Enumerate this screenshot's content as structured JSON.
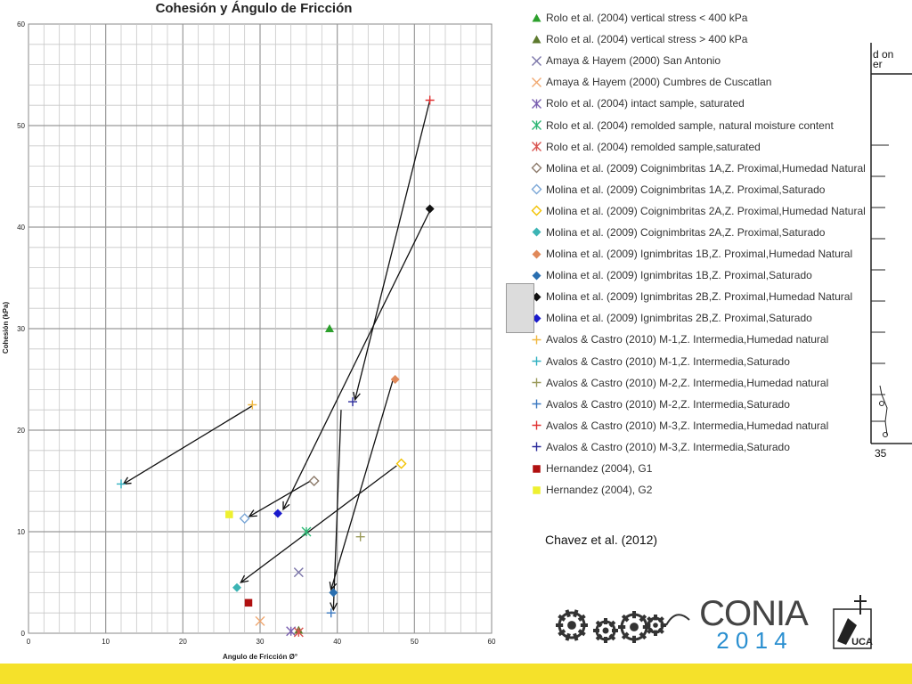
{
  "chart_data": {
    "type": "scatter",
    "title": "Cohesión y Ángulo de Fricción",
    "xlabel": "Angulo de Fricción Ø°",
    "ylabel": "Cohesión (kPa)",
    "xlim": [
      0,
      60
    ],
    "ylim": [
      0,
      60
    ],
    "xticks": [
      "0",
      "10",
      "20",
      "30",
      "40",
      "50",
      "60"
    ],
    "yticks": [
      "0",
      "10",
      "20",
      "30",
      "40",
      "50",
      "60"
    ],
    "grid": true,
    "legend_position": "right",
    "series": [
      {
        "name": "Rolo et al. (2004) vertical stress < 400 kPa",
        "marker": "triangle",
        "color": "#2ca02c",
        "points": [
          [
            39,
            30
          ]
        ]
      },
      {
        "name": "Rolo et al. (2004) vertical stress > 400 kPa",
        "marker": "triangle",
        "color": "#5d7a2e",
        "points": [
          [
            35,
            0.3
          ]
        ]
      },
      {
        "name": "Amaya & Hayem (2000) San Antonio",
        "marker": "x",
        "color": "#7a74a8",
        "points": [
          [
            35,
            6
          ]
        ]
      },
      {
        "name": "Amaya & Hayem (2000) Cumbres de Cuscatlan",
        "marker": "x",
        "color": "#f0a870",
        "points": [
          [
            30,
            1.2
          ]
        ]
      },
      {
        "name": "Rolo et al. (2004) intact sample, saturated",
        "marker": "asterisk",
        "color": "#7a5fb0",
        "points": [
          [
            34,
            0.2
          ]
        ]
      },
      {
        "name": "Rolo et al. (2004) remolded sample, natural moisture content",
        "marker": "asterisk",
        "color": "#2bb673",
        "points": [
          [
            36,
            10
          ]
        ]
      },
      {
        "name": "Rolo et al. (2004) remolded sample,saturated",
        "marker": "asterisk",
        "color": "#d9534f",
        "points": [
          [
            35,
            0.1
          ]
        ]
      },
      {
        "name": "Molina et al. (2009) Coignimbritas 1A,Z. Proximal,Humedad Natural",
        "marker": "diamond-open",
        "color": "#8c7a6b",
        "points": [
          [
            37,
            15
          ]
        ]
      },
      {
        "name": "Molina et al. (2009) Coignimbritas 1A,Z. Proximal,Saturado",
        "marker": "diamond-open",
        "color": "#7aa6d6",
        "points": [
          [
            28,
            11.3
          ]
        ]
      },
      {
        "name": "Molina et al. (2009) Coignimbritas 2A,Z. Proximal,Humedad Natural",
        "marker": "diamond-open",
        "color": "#f2c200",
        "points": [
          [
            48.3,
            16.7
          ]
        ]
      },
      {
        "name": "Molina et al. (2009) Coignimbritas 2A,Z. Proximal,Saturado",
        "marker": "diamond",
        "color": "#3cb4b4",
        "points": [
          [
            27,
            4.5
          ]
        ]
      },
      {
        "name": "Molina et al. (2009) Ignimbritas 1B,Z. Proximal,Humedad Natural",
        "marker": "diamond",
        "color": "#e0895a",
        "points": [
          [
            47.5,
            25
          ]
        ]
      },
      {
        "name": "Molina et al. (2009) Ignimbritas 1B,Z. Proximal,Saturado",
        "marker": "diamond",
        "color": "#2a6fb0",
        "points": [
          [
            39.5,
            4
          ]
        ]
      },
      {
        "name": "Molina et al. (2009) Ignimbritas 2B,Z. Proximal,Humedad Natural",
        "marker": "diamond",
        "color": "#111111",
        "points": [
          [
            52,
            41.8
          ]
        ]
      },
      {
        "name": "Molina et al. (2009) Ignimbritas 2B,Z. Proximal,Saturado",
        "marker": "diamond",
        "color": "#1a1acc",
        "points": [
          [
            32.3,
            11.8
          ]
        ]
      },
      {
        "name": "Avalos & Castro (2010) M-1,Z. Intermedia,Humedad natural",
        "marker": "plus",
        "color": "#f0b840",
        "points": [
          [
            29,
            22.5
          ]
        ]
      },
      {
        "name": "Avalos & Castro (2010) M-1,Z. Intermedia,Saturado",
        "marker": "plus",
        "color": "#30b0c0",
        "points": [
          [
            12,
            14.7
          ]
        ]
      },
      {
        "name": "Avalos & Castro (2010) M-2,Z. Intermedia,Humedad natural",
        "marker": "plus",
        "color": "#9a9a5a",
        "points": [
          [
            43,
            9.5
          ]
        ]
      },
      {
        "name": "Avalos & Castro (2010) M-2,Z. Intermedia,Saturado",
        "marker": "plus",
        "color": "#3a78c0",
        "points": [
          [
            39.2,
            2
          ]
        ]
      },
      {
        "name": "Avalos & Castro (2010) M-3,Z. Intermedia,Humedad natural",
        "marker": "plus",
        "color": "#e03030",
        "points": [
          [
            52,
            52.5
          ]
        ]
      },
      {
        "name": "Avalos & Castro (2010) M-3,Z. Intermedia,Saturado",
        "marker": "plus",
        "color": "#2a2a9a",
        "points": [
          [
            42,
            22.8
          ]
        ]
      },
      {
        "name": "Hernandez (2004), G1",
        "marker": "square",
        "color": "#b01010",
        "points": [
          [
            28.5,
            3
          ]
        ]
      },
      {
        "name": "Hernandez (2004), G2",
        "marker": "square",
        "color": "#eef030",
        "points": [
          [
            26,
            11.7
          ]
        ]
      }
    ],
    "arrows": [
      {
        "from": [
          29,
          22.4
        ],
        "to": [
          12.3,
          14.7
        ]
      },
      {
        "from": [
          52,
          52.5
        ],
        "to": [
          42.3,
          23
        ]
      },
      {
        "from": [
          52,
          41.6
        ],
        "to": [
          33,
          12.2
        ]
      },
      {
        "from": [
          37,
          15.2
        ],
        "to": [
          28.6,
          11.5
        ]
      },
      {
        "from": [
          47.2,
          24.9
        ],
        "to": [
          39.2,
          4.3
        ]
      },
      {
        "from": [
          47.7,
          16.5
        ],
        "to": [
          27.5,
          5
        ]
      },
      {
        "from": [
          40.5,
          22
        ],
        "to": [
          39.5,
          2.3
        ]
      }
    ]
  },
  "side_figure": {
    "label": "d on\ner",
    "value": "35"
  },
  "gray_box_color": "#dcdcdc",
  "citation": "Chavez et al. (2012)",
  "logo": {
    "text": "CONIA",
    "year": "2 0 1 4",
    "badge": "UCA",
    "color": "#444444",
    "year_color": "#2a8fd0"
  },
  "bottom_bar_color": "#f5e12a"
}
